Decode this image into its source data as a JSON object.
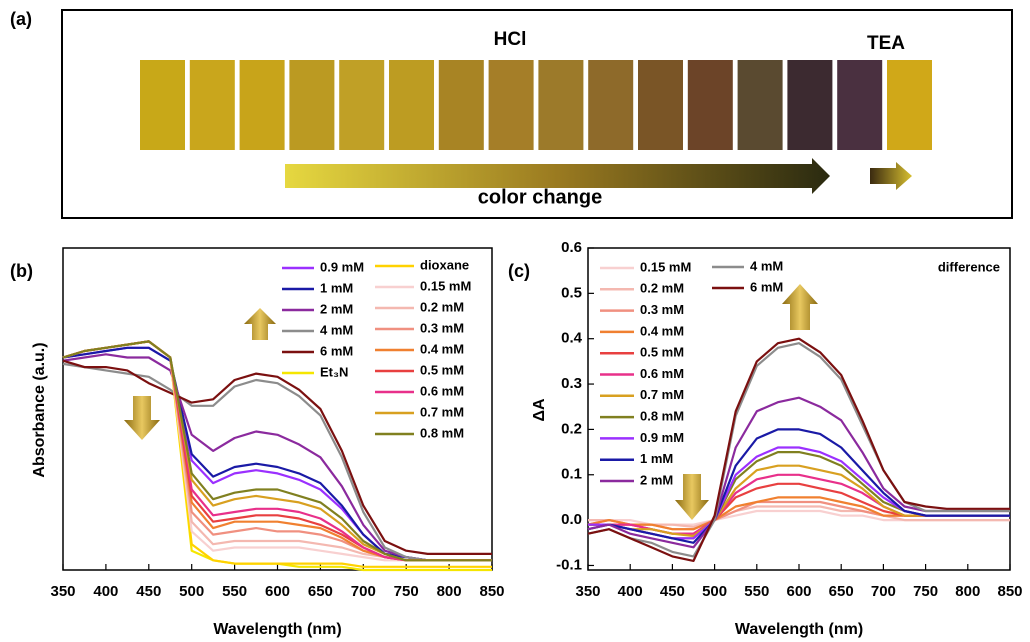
{
  "panel_a": {
    "label": "(a)",
    "hcl": "HCl",
    "tea": "TEA",
    "caption": "color change",
    "swatches": [
      "#c8a818",
      "#c9a61c",
      "#c8a41a",
      "#bb9a22",
      "#c0a026",
      "#bd9c22",
      "#a88424",
      "#a57e28",
      "#9c7a2a",
      "#8e6a2a",
      "#7a5526",
      "#6c4428",
      "#5a4a30",
      "#3c2a30",
      "#4a3040",
      "#d0a818"
    ]
  },
  "chart_data": [
    {
      "type": "line",
      "panel_label": "(b)",
      "x_label": "Wavelength (nm)",
      "y_label": "Absorbance (a.u.)",
      "x": [
        350,
        375,
        400,
        425,
        450,
        475,
        500,
        525,
        550,
        575,
        600,
        625,
        650,
        675,
        700,
        725,
        750,
        775,
        800,
        825,
        850
      ],
      "xlim": [
        350,
        850
      ],
      "xticks": [
        350,
        400,
        450,
        500,
        550,
        600,
        650,
        700,
        750,
        800,
        850
      ],
      "ylim": [
        0,
        1
      ],
      "series": [
        {
          "name": "0.9 mM",
          "color": "#9b30ff",
          "values": [
            0.66,
            0.67,
            0.68,
            0.69,
            0.69,
            0.65,
            0.34,
            0.27,
            0.3,
            0.31,
            0.3,
            0.28,
            0.25,
            0.19,
            0.11,
            0.05,
            0.04,
            0.03,
            0.03,
            0.03,
            0.03
          ]
        },
        {
          "name": "1 mM",
          "color": "#1a1aa6",
          "values": [
            0.66,
            0.67,
            0.68,
            0.69,
            0.69,
            0.65,
            0.36,
            0.29,
            0.32,
            0.33,
            0.32,
            0.3,
            0.27,
            0.2,
            0.11,
            0.05,
            0.04,
            0.03,
            0.03,
            0.03,
            0.03
          ]
        },
        {
          "name": "2 mM",
          "color": "#8b2a9e",
          "values": [
            0.65,
            0.66,
            0.67,
            0.66,
            0.66,
            0.62,
            0.42,
            0.37,
            0.41,
            0.43,
            0.42,
            0.39,
            0.35,
            0.26,
            0.14,
            0.06,
            0.04,
            0.03,
            0.03,
            0.03,
            0.03
          ]
        },
        {
          "name": "4 mM",
          "color": "#8c8c8c",
          "values": [
            0.64,
            0.63,
            0.62,
            0.61,
            0.6,
            0.56,
            0.51,
            0.51,
            0.57,
            0.59,
            0.58,
            0.54,
            0.48,
            0.35,
            0.18,
            0.07,
            0.04,
            0.03,
            0.03,
            0.03,
            0.03
          ]
        },
        {
          "name": "6 mM",
          "color": "#7b1010",
          "values": [
            0.65,
            0.63,
            0.63,
            0.62,
            0.58,
            0.55,
            0.52,
            0.53,
            0.59,
            0.61,
            0.6,
            0.56,
            0.5,
            0.37,
            0.2,
            0.09,
            0.06,
            0.05,
            0.05,
            0.05,
            0.05
          ]
        },
        {
          "name": "Et₃N",
          "color": "#f5e600",
          "values": [
            0.66,
            0.68,
            0.69,
            0.7,
            0.71,
            0.66,
            0.06,
            0.03,
            0.02,
            0.02,
            0.02,
            0.01,
            0.01,
            0.01,
            0,
            0,
            0,
            0,
            0,
            0,
            0
          ]
        },
        {
          "name": "dioxane",
          "color": "#ffd200",
          "values": [
            0.66,
            0.68,
            0.69,
            0.7,
            0.71,
            0.66,
            0.08,
            0.03,
            0.02,
            0.02,
            0.02,
            0.02,
            0.02,
            0.02,
            0.01,
            0.01,
            0.01,
            0.01,
            0.01,
            0.01,
            0.01
          ]
        },
        {
          "name": "0.15 mM",
          "color": "#f8d0d0",
          "values": [
            0.66,
            0.68,
            0.69,
            0.7,
            0.71,
            0.66,
            0.12,
            0.06,
            0.07,
            0.07,
            0.07,
            0.07,
            0.06,
            0.05,
            0.04,
            0.03,
            0.03,
            0.03,
            0.03,
            0.03,
            0.03
          ]
        },
        {
          "name": "0.2 mM",
          "color": "#f4b8b0",
          "values": [
            0.66,
            0.68,
            0.69,
            0.7,
            0.71,
            0.66,
            0.15,
            0.08,
            0.09,
            0.09,
            0.09,
            0.09,
            0.08,
            0.07,
            0.05,
            0.04,
            0.03,
            0.03,
            0.03,
            0.03,
            0.03
          ]
        },
        {
          "name": "0.3 mM",
          "color": "#f09080",
          "values": [
            0.66,
            0.68,
            0.69,
            0.7,
            0.71,
            0.66,
            0.18,
            0.11,
            0.12,
            0.13,
            0.12,
            0.12,
            0.11,
            0.09,
            0.06,
            0.04,
            0.03,
            0.03,
            0.03,
            0.03,
            0.03
          ]
        },
        {
          "name": "0.4 mM",
          "color": "#f08030",
          "values": [
            0.66,
            0.68,
            0.69,
            0.7,
            0.71,
            0.66,
            0.21,
            0.13,
            0.15,
            0.15,
            0.15,
            0.14,
            0.13,
            0.1,
            0.06,
            0.04,
            0.03,
            0.03,
            0.03,
            0.03,
            0.03
          ]
        },
        {
          "name": "0.5 mM",
          "color": "#e84040",
          "values": [
            0.66,
            0.68,
            0.69,
            0.7,
            0.71,
            0.66,
            0.23,
            0.15,
            0.16,
            0.17,
            0.17,
            0.16,
            0.14,
            0.11,
            0.07,
            0.04,
            0.03,
            0.03,
            0.03,
            0.03,
            0.03
          ]
        },
        {
          "name": "0.6 mM",
          "color": "#e8308a",
          "values": [
            0.66,
            0.68,
            0.69,
            0.7,
            0.71,
            0.66,
            0.25,
            0.17,
            0.18,
            0.19,
            0.19,
            0.18,
            0.16,
            0.12,
            0.07,
            0.04,
            0.03,
            0.03,
            0.03,
            0.03,
            0.03
          ]
        },
        {
          "name": "0.7 mM",
          "color": "#d8a020",
          "values": [
            0.66,
            0.68,
            0.69,
            0.7,
            0.71,
            0.66,
            0.28,
            0.2,
            0.22,
            0.23,
            0.22,
            0.21,
            0.19,
            0.14,
            0.08,
            0.05,
            0.03,
            0.03,
            0.03,
            0.03,
            0.03
          ]
        },
        {
          "name": "0.8 mM",
          "color": "#808020",
          "values": [
            0.66,
            0.68,
            0.69,
            0.7,
            0.71,
            0.66,
            0.3,
            0.22,
            0.24,
            0.25,
            0.25,
            0.23,
            0.21,
            0.16,
            0.09,
            0.05,
            0.03,
            0.03,
            0.03,
            0.03,
            0.03
          ]
        }
      ]
    },
    {
      "type": "line",
      "panel_label": "(c)",
      "annotation": "difference",
      "x_label": "Wavelength (nm)",
      "y_label": "ΔA",
      "x": [
        350,
        375,
        400,
        425,
        450,
        475,
        500,
        525,
        550,
        575,
        600,
        625,
        650,
        675,
        700,
        725,
        750,
        775,
        800,
        825,
        850
      ],
      "xlim": [
        350,
        850
      ],
      "xticks": [
        350,
        400,
        450,
        500,
        550,
        600,
        650,
        700,
        750,
        800,
        850
      ],
      "ylim": [
        -0.11,
        0.6
      ],
      "yticks": [
        -0.1,
        {
          "value": 0,
          "label": "0.0"
        },
        0.1,
        0.2,
        0.3,
        0.4,
        0.5,
        0.6
      ],
      "series": [
        {
          "name": "0.15 mM",
          "color": "#f8d0d0",
          "values": [
            0,
            0,
            0,
            -0.01,
            -0.01,
            -0.01,
            0,
            0.01,
            0.02,
            0.02,
            0.02,
            0.02,
            0.01,
            0.01,
            0,
            0,
            0,
            0,
            0,
            0,
            0
          ]
        },
        {
          "name": "0.2 mM",
          "color": "#f4b8b0",
          "values": [
            0,
            0,
            -0.01,
            -0.01,
            -0.01,
            -0.015,
            0,
            0.02,
            0.03,
            0.03,
            0.03,
            0.03,
            0.02,
            0.02,
            0.01,
            0,
            0,
            0,
            0,
            0,
            0
          ]
        },
        {
          "name": "0.3 mM",
          "color": "#f09080",
          "values": [
            -0.01,
            0,
            -0.01,
            -0.01,
            -0.02,
            -0.02,
            0,
            0.02,
            0.04,
            0.04,
            0.04,
            0.04,
            0.03,
            0.02,
            0.01,
            0.01,
            0.01,
            0.01,
            0.01,
            0.01,
            0.01
          ]
        },
        {
          "name": "0.4 mM",
          "color": "#f08030",
          "values": [
            -0.01,
            0,
            -0.01,
            -0.01,
            -0.02,
            -0.02,
            0,
            0.03,
            0.04,
            0.05,
            0.05,
            0.05,
            0.04,
            0.03,
            0.01,
            0.01,
            0.01,
            0.01,
            0.01,
            0.01,
            0.01
          ]
        },
        {
          "name": "0.5 mM",
          "color": "#e84040",
          "values": [
            -0.01,
            -0.01,
            -0.01,
            -0.02,
            -0.03,
            -0.03,
            0,
            0.05,
            0.07,
            0.08,
            0.08,
            0.07,
            0.06,
            0.04,
            0.02,
            0.01,
            0.01,
            0.01,
            0.01,
            0.01,
            0.01
          ]
        },
        {
          "name": "0.6 mM",
          "color": "#e8308a",
          "values": [
            -0.01,
            -0.01,
            -0.01,
            -0.02,
            -0.03,
            -0.03,
            0,
            0.06,
            0.09,
            0.1,
            0.1,
            0.09,
            0.08,
            0.06,
            0.03,
            0.01,
            0.01,
            0.01,
            0.01,
            0.01,
            0.01
          ]
        },
        {
          "name": "0.7 mM",
          "color": "#d8a020",
          "values": [
            -0.01,
            -0.01,
            -0.02,
            -0.02,
            -0.03,
            -0.035,
            0,
            0.07,
            0.11,
            0.12,
            0.12,
            0.11,
            0.1,
            0.07,
            0.03,
            0.01,
            0.01,
            0.01,
            0.01,
            0.01,
            0.01
          ]
        },
        {
          "name": "0.8 mM",
          "color": "#808020",
          "values": [
            -0.01,
            -0.01,
            -0.02,
            -0.03,
            -0.04,
            -0.04,
            0,
            0.09,
            0.13,
            0.15,
            0.15,
            0.14,
            0.12,
            0.08,
            0.04,
            0.02,
            0.01,
            0.01,
            0.01,
            0.01,
            0.01
          ]
        },
        {
          "name": "0.9 mM",
          "color": "#9b30ff",
          "values": [
            -0.01,
            -0.01,
            -0.02,
            -0.03,
            -0.04,
            -0.04,
            0,
            0.1,
            0.14,
            0.16,
            0.16,
            0.15,
            0.13,
            0.09,
            0.05,
            0.02,
            0.01,
            0.01,
            0.01,
            0.01,
            0.01
          ]
        },
        {
          "name": "1 mM",
          "color": "#1a1aa6",
          "values": [
            -0.02,
            -0.01,
            -0.02,
            -0.03,
            -0.04,
            -0.05,
            0,
            0.12,
            0.18,
            0.2,
            0.2,
            0.19,
            0.16,
            0.11,
            0.06,
            0.02,
            0.01,
            0.01,
            0.01,
            0.01,
            0.01
          ]
        },
        {
          "name": "2 mM",
          "color": "#8b2a9e",
          "values": [
            -0.02,
            -0.01,
            -0.03,
            -0.04,
            -0.05,
            -0.06,
            0,
            0.16,
            0.24,
            0.26,
            0.27,
            0.25,
            0.22,
            0.15,
            0.07,
            0.03,
            0.02,
            0.02,
            0.02,
            0.02,
            0.02
          ]
        },
        {
          "name": "4 mM",
          "color": "#8c8c8c",
          "values": [
            -0.03,
            -0.02,
            -0.04,
            -0.05,
            -0.07,
            -0.08,
            0,
            0.23,
            0.34,
            0.38,
            0.39,
            0.36,
            0.31,
            0.21,
            0.11,
            0.04,
            0.02,
            0.02,
            0.02,
            0.02,
            0.02
          ]
        },
        {
          "name": "6 mM",
          "color": "#7b1010",
          "values": [
            -0.03,
            -0.02,
            -0.04,
            -0.06,
            -0.08,
            -0.09,
            0.01,
            0.24,
            0.35,
            0.39,
            0.4,
            0.37,
            0.32,
            0.22,
            0.11,
            0.04,
            0.03,
            0.025,
            0.025,
            0.025,
            0.025
          ]
        }
      ]
    }
  ]
}
